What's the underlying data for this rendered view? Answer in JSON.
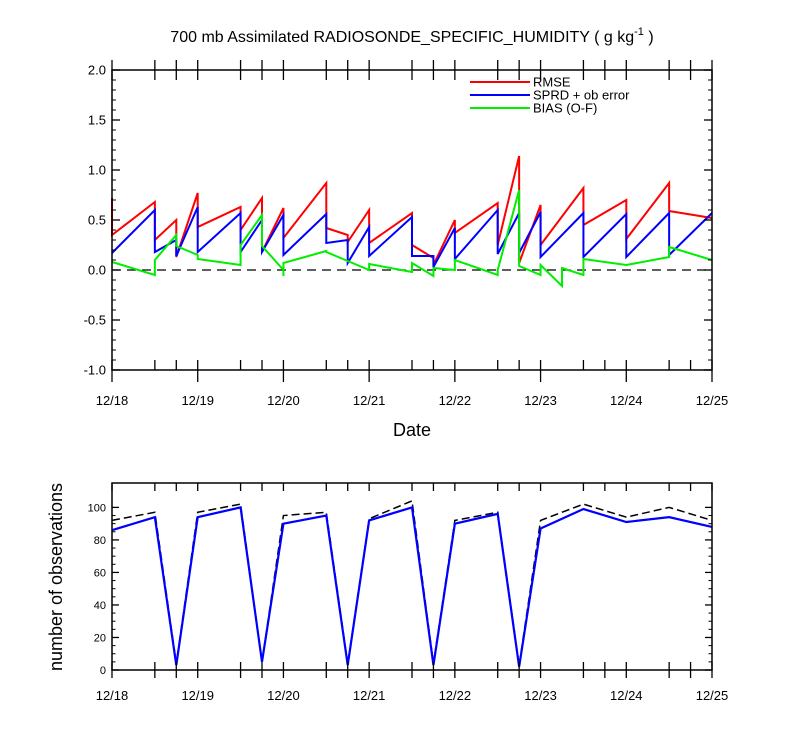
{
  "title": {
    "main": "700 mb Assimilated RADIOSONDE_SPECIFIC_HUMIDITY ( g kg",
    "exponent": "-1",
    "close": " )"
  },
  "date_labels": [
    "12/18",
    "12/19",
    "12/20",
    "12/21",
    "12/22",
    "12/23",
    "12/24",
    "12/25"
  ],
  "chart_data": [
    {
      "type": "line",
      "xlabel": "Date",
      "ylabel": "",
      "xlim": [
        0,
        7
      ],
      "ylim": [
        -1.0,
        2.0
      ],
      "yticks": [
        -1.0,
        -0.5,
        0.0,
        0.5,
        1.0,
        1.5,
        2.0
      ],
      "ytick_labels": [
        "-1.0",
        "-0.5",
        "0.0",
        "0.5",
        "1.0",
        "1.5",
        "2.0"
      ],
      "zero_line": "dashed",
      "grid": false,
      "legend_position": "top-right",
      "series": [
        {
          "name": "RMSE",
          "color": "#ff0000",
          "points": [
            [
              0.0,
              0.72
            ],
            [
              0.0,
              0.35
            ],
            [
              0.5,
              0.68
            ],
            [
              0.5,
              0.3
            ],
            [
              0.75,
              0.5
            ],
            [
              0.75,
              0.13
            ],
            [
              1.0,
              0.77
            ],
            [
              1.0,
              0.43
            ],
            [
              1.5,
              0.63
            ],
            [
              1.5,
              0.4
            ],
            [
              1.75,
              0.72
            ],
            [
              1.75,
              0.18
            ],
            [
              2.0,
              0.62
            ],
            [
              2.0,
              0.32
            ],
            [
              2.5,
              0.87
            ],
            [
              2.5,
              0.42
            ],
            [
              2.75,
              0.35
            ],
            [
              2.75,
              0.28
            ],
            [
              3.0,
              0.6
            ],
            [
              3.0,
              0.27
            ],
            [
              3.5,
              0.57
            ],
            [
              3.5,
              0.25
            ],
            [
              3.75,
              0.12
            ],
            [
              3.75,
              0.05
            ],
            [
              4.0,
              0.5
            ],
            [
              4.0,
              0.37
            ],
            [
              4.5,
              0.67
            ],
            [
              4.5,
              0.25
            ],
            [
              4.75,
              1.14
            ],
            [
              4.75,
              0.07
            ],
            [
              5.0,
              0.65
            ],
            [
              5.0,
              0.25
            ],
            [
              5.5,
              0.82
            ],
            [
              5.5,
              0.45
            ],
            [
              6.0,
              0.7
            ],
            [
              6.0,
              0.31
            ],
            [
              6.5,
              0.87
            ],
            [
              6.5,
              0.59
            ],
            [
              7.0,
              0.52
            ]
          ]
        },
        {
          "name": "SPRD + ob error",
          "color": "#0000ff",
          "points": [
            [
              0.0,
              0.17
            ],
            [
              0.5,
              0.6
            ],
            [
              0.5,
              0.18
            ],
            [
              0.75,
              0.3
            ],
            [
              0.75,
              0.14
            ],
            [
              1.0,
              0.63
            ],
            [
              1.0,
              0.18
            ],
            [
              1.5,
              0.57
            ],
            [
              1.5,
              0.18
            ],
            [
              1.75,
              0.5
            ],
            [
              1.75,
              0.18
            ],
            [
              2.0,
              0.55
            ],
            [
              2.0,
              0.15
            ],
            [
              2.5,
              0.56
            ],
            [
              2.5,
              0.27
            ],
            [
              2.75,
              0.3
            ],
            [
              2.75,
              0.07
            ],
            [
              3.0,
              0.43
            ],
            [
              3.0,
              0.14
            ],
            [
              3.5,
              0.53
            ],
            [
              3.5,
              0.14
            ],
            [
              3.75,
              0.14
            ],
            [
              3.75,
              0.03
            ],
            [
              4.0,
              0.42
            ],
            [
              4.0,
              0.11
            ],
            [
              4.5,
              0.6
            ],
            [
              4.5,
              0.16
            ],
            [
              4.75,
              0.57
            ],
            [
              4.75,
              0.17
            ],
            [
              5.0,
              0.58
            ],
            [
              5.0,
              0.13
            ],
            [
              5.5,
              0.57
            ],
            [
              5.5,
              0.13
            ],
            [
              6.0,
              0.56
            ],
            [
              6.0,
              0.13
            ],
            [
              6.5,
              0.57
            ],
            [
              6.5,
              0.15
            ],
            [
              7.0,
              0.57
            ]
          ]
        },
        {
          "name": "BIAS (O-F)",
          "color": "#00ee00",
          "points": [
            [
              0.0,
              0.08
            ],
            [
              0.5,
              -0.05
            ],
            [
              0.5,
              0.1
            ],
            [
              0.75,
              0.35
            ],
            [
              0.75,
              0.24
            ],
            [
              1.0,
              0.15
            ],
            [
              1.0,
              0.11
            ],
            [
              1.5,
              0.05
            ],
            [
              1.5,
              0.25
            ],
            [
              1.75,
              0.55
            ],
            [
              1.75,
              0.24
            ],
            [
              2.0,
              0.0
            ],
            [
              2.0,
              -0.06
            ],
            [
              2.0,
              0.07
            ],
            [
              2.5,
              0.19
            ],
            [
              2.5,
              0.18
            ],
            [
              2.75,
              0.09
            ],
            [
              3.0,
              0.0
            ],
            [
              3.0,
              0.06
            ],
            [
              3.5,
              -0.02
            ],
            [
              3.5,
              0.07
            ],
            [
              3.75,
              -0.06
            ],
            [
              3.75,
              0.02
            ],
            [
              4.0,
              0.0
            ],
            [
              4.0,
              0.1
            ],
            [
              4.5,
              -0.05
            ],
            [
              4.5,
              0.0
            ],
            [
              4.75,
              0.8
            ],
            [
              4.75,
              0.04
            ],
            [
              5.0,
              -0.05
            ],
            [
              5.0,
              0.05
            ],
            [
              5.25,
              -0.16
            ],
            [
              5.25,
              0.02
            ],
            [
              5.5,
              -0.05
            ],
            [
              5.5,
              0.11
            ],
            [
              6.0,
              0.05
            ],
            [
              6.5,
              0.13
            ],
            [
              6.5,
              0.23
            ],
            [
              7.0,
              0.1
            ]
          ]
        }
      ]
    },
    {
      "type": "line",
      "xlabel": "",
      "ylabel": "number of observations",
      "xlim": [
        0,
        7
      ],
      "ylim": [
        0,
        115
      ],
      "yticks": [
        0,
        20,
        40,
        60,
        80,
        100
      ],
      "ytick_labels": [
        "0",
        "20",
        "40",
        "60",
        "80",
        "100"
      ],
      "grid": false,
      "series": [
        {
          "style": "dashed",
          "color": "#000000",
          "points": [
            [
              0.0,
              92
            ],
            [
              0.5,
              97
            ],
            [
              0.75,
              4
            ],
            [
              1.0,
              97
            ],
            [
              1.5,
              102
            ],
            [
              1.75,
              5
            ],
            [
              2.0,
              95
            ],
            [
              2.5,
              97
            ],
            [
              2.75,
              4
            ],
            [
              3.0,
              93
            ],
            [
              3.5,
              104
            ],
            [
              3.75,
              4
            ],
            [
              4.0,
              92
            ],
            [
              4.5,
              97
            ],
            [
              4.75,
              3
            ],
            [
              5.0,
              92
            ],
            [
              5.5,
              102
            ],
            [
              6.0,
              94
            ],
            [
              6.5,
              100
            ],
            [
              7.0,
              92
            ]
          ]
        },
        {
          "style": "solid",
          "color": "#0000ff",
          "points": [
            [
              0.0,
              86
            ],
            [
              0.5,
              94
            ],
            [
              0.75,
              3
            ],
            [
              1.0,
              94
            ],
            [
              1.5,
              100
            ],
            [
              1.75,
              5
            ],
            [
              2.0,
              90
            ],
            [
              2.5,
              95
            ],
            [
              2.75,
              3
            ],
            [
              3.0,
              92
            ],
            [
              3.5,
              100
            ],
            [
              3.75,
              3
            ],
            [
              4.0,
              90
            ],
            [
              4.5,
              96
            ],
            [
              4.75,
              2
            ],
            [
              5.0,
              87
            ],
            [
              5.5,
              99
            ],
            [
              6.0,
              91
            ],
            [
              6.5,
              94
            ],
            [
              7.0,
              88
            ]
          ]
        }
      ]
    }
  ]
}
